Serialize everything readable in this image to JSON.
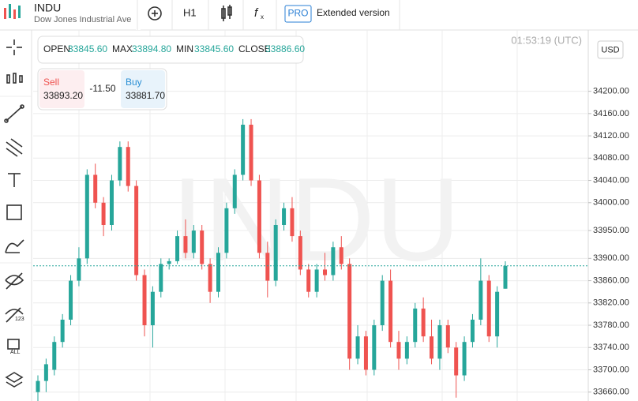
{
  "header": {
    "symbol": "INDU",
    "name": "Dow Jones Industrial Ave",
    "timeframe": "H1",
    "pro": "PRO",
    "extended": "Extended version"
  },
  "ohlc": {
    "open_label": "OPEN",
    "open": "33845.60",
    "max_label": "MAX",
    "max": "33894.80",
    "min_label": "MIN",
    "min": "33845.60",
    "close_label": "CLOSE",
    "close": "33886.60"
  },
  "trade": {
    "sell_label": "Sell",
    "sell": "33893.20",
    "spread": "-11.50",
    "buy_label": "Buy",
    "buy": "33881.70"
  },
  "time": "01:53:19 (UTC)",
  "currency": "USD",
  "watermark": "INDU",
  "chart_data": {
    "type": "candlestick",
    "up_color": "#26a69a",
    "down_color": "#ef5350",
    "open": [
      33660,
      33680,
      33700,
      33750,
      33790,
      33860,
      33900,
      34050,
      34000,
      33960,
      34040,
      34100,
      34030,
      33870,
      33780,
      33840,
      33890,
      33895,
      33940,
      33910,
      33950,
      33890,
      33840,
      33910,
      33990,
      34050,
      34140,
      34040,
      33910,
      33860,
      33960,
      33990,
      33940,
      33880,
      33840,
      33880,
      33870,
      33920,
      33890,
      33720,
      33760,
      33700,
      33780,
      33860,
      33750,
      33720,
      33750,
      33810,
      33760,
      33720,
      33780,
      33740,
      33690,
      33750,
      33790,
      33860,
      33760,
      33845.6
    ],
    "high": [
      33690,
      33720,
      33760,
      33800,
      33870,
      33920,
      34060,
      34070,
      34010,
      34050,
      34110,
      34110,
      34040,
      33880,
      33850,
      33900,
      33900,
      33950,
      33970,
      33960,
      33960,
      33900,
      33920,
      34000,
      34060,
      34150,
      34150,
      34050,
      33930,
      33970,
      34000,
      34010,
      33950,
      33890,
      33890,
      33910,
      33930,
      33940,
      33900,
      33780,
      33770,
      33790,
      33870,
      33880,
      33770,
      33760,
      33820,
      33830,
      33790,
      33790,
      33790,
      33750,
      33760,
      33800,
      33900,
      33870,
      33850,
      33894.8
    ],
    "low": [
      33640,
      33660,
      33690,
      33740,
      33780,
      33850,
      33890,
      33990,
      33940,
      33950,
      34030,
      34020,
      33860,
      33760,
      33740,
      33830,
      33880,
      33890,
      33900,
      33900,
      33880,
      33820,
      33830,
      33900,
      33980,
      34040,
      34030,
      33900,
      33830,
      33850,
      33950,
      33930,
      33870,
      33830,
      33830,
      33860,
      33860,
      33880,
      33700,
      33710,
      33690,
      33690,
      33770,
      33740,
      33700,
      33710,
      33740,
      33750,
      33710,
      33700,
      33730,
      33650,
      33680,
      33740,
      33780,
      33750,
      33740,
      33845.6
    ],
    "close": [
      33680,
      33710,
      33750,
      33790,
      33860,
      33900,
      34050,
      34000,
      33960,
      34040,
      34100,
      34030,
      33870,
      33780,
      33840,
      33890,
      33895,
      33940,
      33910,
      33950,
      33890,
      33840,
      33910,
      33990,
      34050,
      34140,
      34040,
      33910,
      33860,
      33960,
      33990,
      33940,
      33880,
      33840,
      33880,
      33870,
      33920,
      33890,
      33720,
      33760,
      33700,
      33780,
      33860,
      33750,
      33720,
      33750,
      33810,
      33760,
      33720,
      33780,
      33740,
      33690,
      33750,
      33790,
      33860,
      33760,
      33840,
      33886.6
    ],
    "ylim": [
      33644,
      34310
    ],
    "yticks": [
      {
        "value": 34200,
        "label": "34200.00"
      },
      {
        "value": 34160,
        "label": "34160.00"
      },
      {
        "value": 34120,
        "label": "34120.00"
      },
      {
        "value": 34080,
        "label": "34080.00"
      },
      {
        "value": 34040,
        "label": "34040.00"
      },
      {
        "value": 34000,
        "label": "34000.00"
      },
      {
        "value": 33950,
        "label": "33950.00"
      },
      {
        "value": 33900,
        "label": "33900.00"
      },
      {
        "value": 33860,
        "label": "33860.00"
      },
      {
        "value": 33820,
        "label": "33820.00"
      },
      {
        "value": 33780,
        "label": "33780.00"
      },
      {
        "value": 33740,
        "label": "33740.00"
      },
      {
        "value": 33700,
        "label": "33700.00"
      },
      {
        "value": 33660,
        "label": "33660.00"
      }
    ],
    "grid": true
  }
}
